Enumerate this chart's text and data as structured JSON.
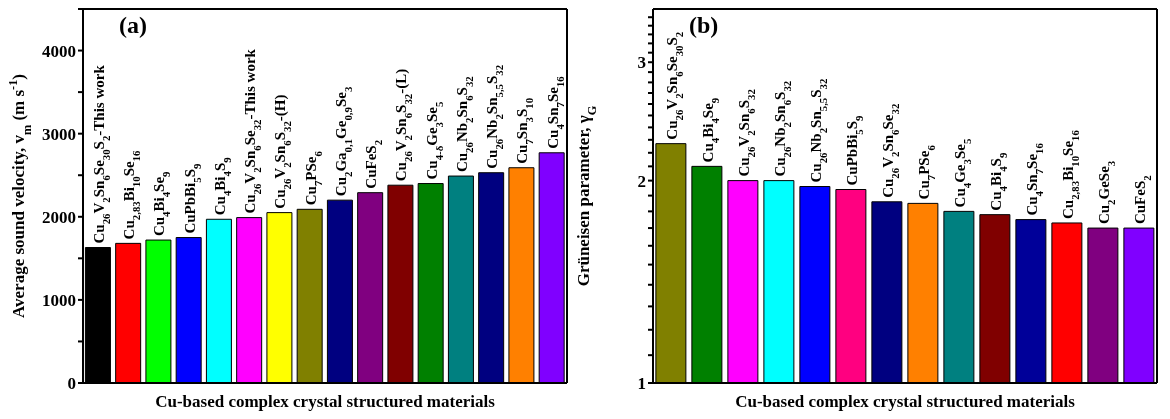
{
  "chart_data": [
    {
      "type": "bar",
      "title": "(a)",
      "xlabel": "Cu-based complex crystal structured materials",
      "ylabel": "Average sound velocity, v$_{m}$ (m s$^{-1}$)",
      "categories": [
        "Cu$_{26}$V$_{2}$Sn$_{6}$Se$_{30}$S$_{2}$-This work",
        "Cu$_{2,83}$Bi$_{10}$Se$_{16}$",
        "Cu$_{4}$Bi$_{4}$Se$_{9}$",
        "CuPbBi$_{5}$S$_{9}$",
        "Cu$_{4}$Bi$_{4}$S$_{9}$",
        "Cu$_{26}$V$_{2}$Sn$_{6}$Se$_{32}$-This work",
        "Cu$_{26}$V$_{2}$Sn$_{6}$S$_{32}$-(H)",
        "Cu$_{7}$PSe$_{6}$",
        "Cu$_{2}$Ga$_{0,1}$Ge$_{0,9}$Se$_{3}$",
        "CuFeS$_{2}$",
        "Cu$_{26}$V$_{2}$Sn$_{6}$S$_{32}$-(L)",
        "Cu$_{4-δ}$Ge$_{3}$Se$_{5}$",
        "Cu$_{26}$Nb$_{2}$Sn$_{6}$S$_{32}$",
        "Cu$_{26}$Nb$_{2}$Sn$_{5,5}$S$_{32}$",
        "Cu$_{7}$Sn$_{3}$S$_{10}$",
        "Cu$_{4}$Sn$_{7}$Se$_{16}$"
      ],
      "values": [
        1630,
        1680,
        1720,
        1750,
        1970,
        1990,
        2050,
        2090,
        2200,
        2290,
        2380,
        2400,
        2490,
        2530,
        2590,
        2770
      ],
      "colors": [
        "#000000",
        "#ff0000",
        "#00ff00",
        "#0000ff",
        "#00ffff",
        "#ff00ff",
        "#ffff00",
        "#808000",
        "#000080",
        "#800080",
        "#800000",
        "#008000",
        "#008080",
        "#000080",
        "#ff8000",
        "#8000ff"
      ],
      "ylim": [
        0,
        4500
      ],
      "yticks": [
        0,
        {
          "value": 500,
          "label": null
        },
        1000,
        {
          "value": 1500,
          "label": null
        },
        2000,
        {
          "value": 2500,
          "label": null
        },
        3000,
        {
          "value": 3500,
          "label": null
        },
        4000,
        {
          "value": 4500,
          "label": null
        }
      ]
    },
    {
      "type": "bar",
      "title": "(b)",
      "xlabel": "Cu-based complex crystal structured materials",
      "ylabel": "Grüneisen parameter, γ$_{G}$",
      "log": true,
      "categories": [
        "Cu$_{26}$V$_{2}$Sn$_{6}$Se$_{30}$S$_{2}$",
        "Cu$_{4}$Bi$_{4}$Se$_{9}$",
        "Cu$_{26}$V$_{2}$Sn$_{6}$S$_{32}$",
        "Cu$_{26}$Nb$_{2}$Sn$_{6}$S$_{32}$",
        "Cu$_{26}$Nb$_{2}$Sn$_{5,5}$S$_{32}$",
        "CuPbBi$_{5}$S$_{9}$",
        "Cu$_{26}$V$_{2}$Sn$_{6}$Se$_{32}$",
        "Cu$_{7}$PSe$_{6}$",
        "Cu$_{4}$Ge$_{3}$Se$_{5}$",
        "Cu$_{4}$Bi$_{4}$S$_{9}$",
        "Cu$_{4}$Sn$_{7}$Se$_{16}$",
        "Cu$_{2,83}$Bi$_{10}$Se$_{16}$",
        "Cu$_{2}$GeSe$_{3}$",
        "CuFeS$_{2}$"
      ],
      "values": [
        2.27,
        2.1,
        2.0,
        2.0,
        1.96,
        1.94,
        1.86,
        1.85,
        1.8,
        1.78,
        1.75,
        1.73,
        1.7,
        1.7
      ],
      "colors": [
        "#808000",
        "#008000",
        "#ff00ff",
        "#00ffff",
        "#0000ff",
        "#ff0080",
        "#000080",
        "#ff8000",
        "#008080",
        "#800000",
        "#000099",
        "#ff0000",
        "#800080",
        "#8000ff"
      ],
      "ylim": [
        1,
        3.6
      ],
      "yticks": [
        1,
        {
          "value": 1.1,
          "label": null
        },
        {
          "value": 1.2,
          "label": null
        },
        {
          "value": 1.3,
          "label": null
        },
        {
          "value": 1.4,
          "label": null
        },
        {
          "value": 1.5,
          "label": null
        },
        {
          "value": 1.6,
          "label": null
        },
        {
          "value": 1.7,
          "label": null
        },
        {
          "value": 1.8,
          "label": null
        },
        {
          "value": 1.9,
          "label": null
        },
        2,
        {
          "value": 2.1,
          "label": null
        },
        {
          "value": 2.2,
          "label": null
        },
        {
          "value": 2.3,
          "label": null
        },
        {
          "value": 2.4,
          "label": null
        },
        {
          "value": 2.5,
          "label": null
        },
        {
          "value": 2.6,
          "label": null
        },
        {
          "value": 2.7,
          "label": null
        },
        {
          "value": 2.8,
          "label": null
        },
        {
          "value": 2.9,
          "label": null
        },
        3,
        {
          "value": 3.1,
          "label": null
        },
        {
          "value": 3.2,
          "label": null
        },
        {
          "value": 3.3,
          "label": null
        },
        {
          "value": 3.4,
          "label": null
        },
        {
          "value": 3.5,
          "label": null
        }
      ]
    }
  ]
}
